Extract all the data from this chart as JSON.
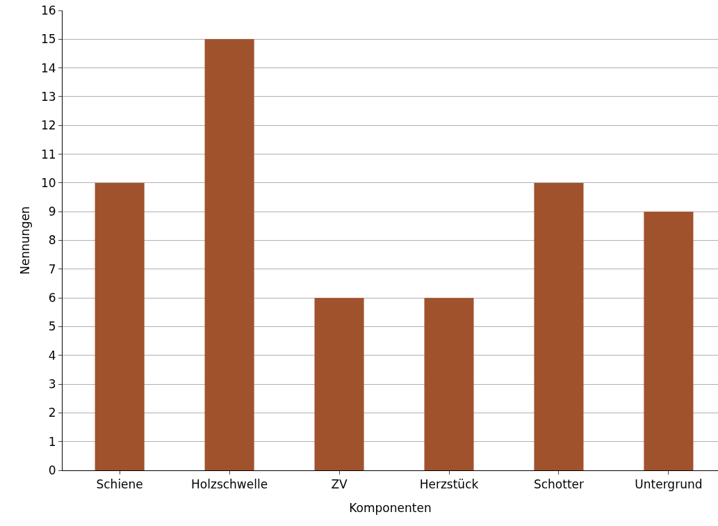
{
  "chart_data": {
    "type": "bar",
    "xlabel": "Komponenten",
    "ylabel": "Nennungen",
    "categories": [
      "Schiene",
      "Holzschwelle",
      "ZV",
      "Herzstück",
      "Schotter",
      "Untergrund"
    ],
    "values": [
      10,
      15,
      6,
      6,
      10,
      9
    ],
    "color": "#a0522d",
    "ylim": [
      0,
      16
    ],
    "yticks": [
      0,
      1,
      2,
      3,
      4,
      5,
      6,
      7,
      8,
      9,
      10,
      11,
      12,
      13,
      14,
      15,
      16
    ],
    "grid": "y"
  }
}
